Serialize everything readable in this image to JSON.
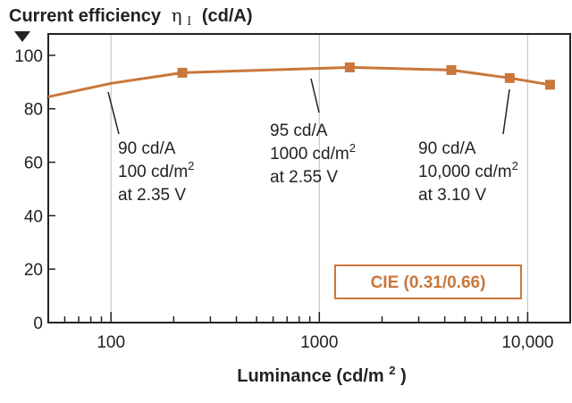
{
  "colors": {
    "series": "#c9773a",
    "axis": "#222222",
    "grid": "#c8c8c8",
    "legend_border": "#c9773a",
    "legend_text": "#c9773a"
  },
  "chart_data": {
    "type": "line",
    "title": "",
    "ylabel": "Current efficiency",
    "ylabel_symbol": "η",
    "ylabel_subscript": "I",
    "ylabel_unit": "(cd/A)",
    "xlabel": "Luminance (cd/m",
    "xlabel_sup": "2",
    "xlabel_close": ")",
    "xscale": "log",
    "xlim": [
      50,
      16000
    ],
    "ylim": [
      0,
      108
    ],
    "grid": "vertical at decades",
    "x_ticks": [
      100,
      1000,
      10000
    ],
    "x_tick_labels": [
      "100",
      "1000",
      "10,000"
    ],
    "y_ticks": [
      0,
      20,
      40,
      60,
      80,
      100
    ],
    "y_tick_labels": [
      "0",
      "20",
      "40",
      "60",
      "80",
      "100"
    ],
    "series": [
      {
        "x": [
          50,
          100,
          220,
          1400,
          4300,
          8200,
          12800
        ],
        "y": [
          84.5,
          89.5,
          93.5,
          95.5,
          94.5,
          91.5,
          89
        ],
        "markers": [
          false,
          false,
          true,
          true,
          true,
          true,
          true
        ]
      }
    ],
    "legend": "CIE (0.31/0.66)",
    "legend_position": "bottom-right",
    "annotations": [
      {
        "x": 100,
        "y": 89.5,
        "lines": [
          "90 cd/A",
          "100 cd/m",
          "at 2.35 V"
        ],
        "sup": "2"
      },
      {
        "x": 1000,
        "y": 95,
        "lines": [
          "95 cd/A",
          "1000 cd/m",
          "at 2.55 V"
        ],
        "sup": "2"
      },
      {
        "x": 10000,
        "y": 90,
        "lines": [
          "90 cd/A",
          "10,000 cd/m",
          "at 3.10 V"
        ],
        "sup": "2"
      }
    ]
  }
}
